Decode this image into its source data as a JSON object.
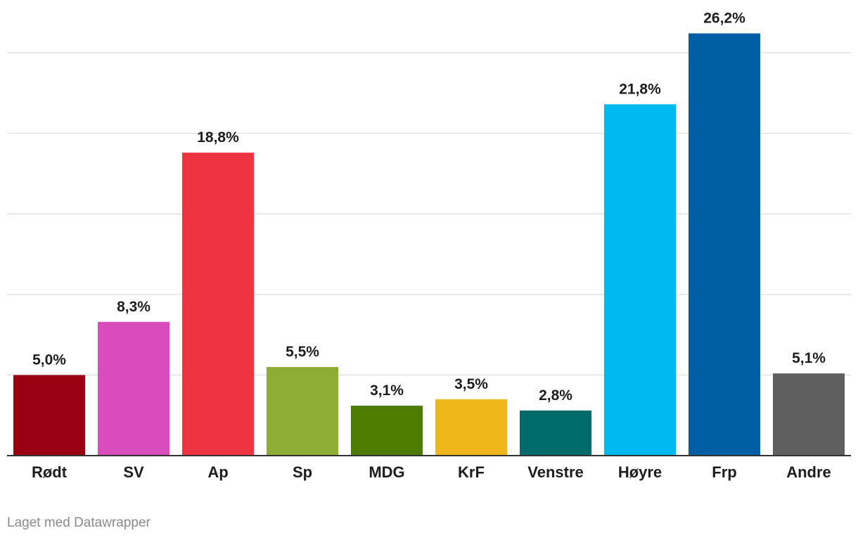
{
  "chart_data": {
    "type": "bar",
    "categories": [
      "Rødt",
      "SV",
      "Ap",
      "Sp",
      "MDG",
      "KrF",
      "Venstre",
      "Høyre",
      "Frp",
      "Andre"
    ],
    "values": [
      5.0,
      8.3,
      18.8,
      5.5,
      3.1,
      3.5,
      2.8,
      21.8,
      26.2,
      5.1
    ],
    "value_labels": [
      "5,0%",
      "8,3%",
      "18,8%",
      "5,5%",
      "3,1%",
      "3,5%",
      "2,8%",
      "21,8%",
      "26,2%",
      "5,1%"
    ],
    "colors": [
      "#990011",
      "#d94cbc",
      "#ee3341",
      "#8ead35",
      "#4e7c00",
      "#efb71b",
      "#006b6a",
      "#00b9f1",
      "#005ea5",
      "#5f5f5f"
    ],
    "title": "",
    "xlabel": "",
    "ylabel": "",
    "ylim": [
      0,
      27.5
    ],
    "gridlines": [
      5,
      10,
      15,
      20,
      25
    ],
    "grid": true,
    "legend": "none"
  },
  "footer": {
    "credit": "Laget med Datawrapper"
  }
}
